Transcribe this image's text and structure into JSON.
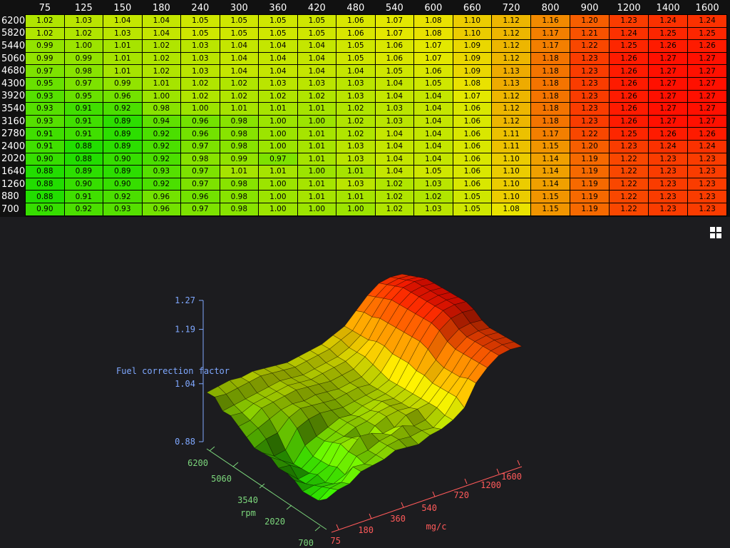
{
  "table": {
    "x_headers": [
      "75",
      "125",
      "150",
      "180",
      "240",
      "300",
      "360",
      "420",
      "480",
      "540",
      "600",
      "660",
      "720",
      "800",
      "900",
      "1200",
      "1400",
      "1600"
    ],
    "rows": [
      {
        "rpm": "6200",
        "values": [
          "1.02",
          "1.03",
          "1.04",
          "1.04",
          "1.05",
          "1.05",
          "1.05",
          "1.05",
          "1.06",
          "1.07",
          "1.08",
          "1.10",
          "1.12",
          "1.16",
          "1.20",
          "1.23",
          "1.24",
          "1.24"
        ]
      },
      {
        "rpm": "5820",
        "values": [
          "1.02",
          "1.02",
          "1.03",
          "1.04",
          "1.05",
          "1.05",
          "1.05",
          "1.05",
          "1.06",
          "1.07",
          "1.08",
          "1.10",
          "1.12",
          "1.17",
          "1.21",
          "1.24",
          "1.25",
          "1.25"
        ]
      },
      {
        "rpm": "5440",
        "values": [
          "0.99",
          "1.00",
          "1.01",
          "1.02",
          "1.03",
          "1.04",
          "1.04",
          "1.04",
          "1.05",
          "1.06",
          "1.07",
          "1.09",
          "1.12",
          "1.17",
          "1.22",
          "1.25",
          "1.26",
          "1.26"
        ]
      },
      {
        "rpm": "5060",
        "values": [
          "0.99",
          "0.99",
          "1.01",
          "1.02",
          "1.03",
          "1.04",
          "1.04",
          "1.04",
          "1.05",
          "1.06",
          "1.07",
          "1.09",
          "1.12",
          "1.18",
          "1.23",
          "1.26",
          "1.27",
          "1.27"
        ]
      },
      {
        "rpm": "4680",
        "values": [
          "0.97",
          "0.98",
          "1.01",
          "1.02",
          "1.03",
          "1.04",
          "1.04",
          "1.04",
          "1.04",
          "1.05",
          "1.06",
          "1.09",
          "1.13",
          "1.18",
          "1.23",
          "1.26",
          "1.27",
          "1.27"
        ]
      },
      {
        "rpm": "4300",
        "values": [
          "0.95",
          "0.97",
          "0.99",
          "1.01",
          "1.02",
          "1.02",
          "1.03",
          "1.03",
          "1.03",
          "1.04",
          "1.05",
          "1.08",
          "1.13",
          "1.18",
          "1.23",
          "1.26",
          "1.27",
          "1.27"
        ]
      },
      {
        "rpm": "3920",
        "values": [
          "0.93",
          "0.95",
          "0.96",
          "1.00",
          "1.02",
          "1.02",
          "1.02",
          "1.02",
          "1.03",
          "1.04",
          "1.04",
          "1.07",
          "1.12",
          "1.18",
          "1.23",
          "1.26",
          "1.27",
          "1.27"
        ]
      },
      {
        "rpm": "3540",
        "values": [
          "0.93",
          "0.91",
          "0.92",
          "0.98",
          "1.00",
          "1.01",
          "1.01",
          "1.01",
          "1.02",
          "1.03",
          "1.04",
          "1.06",
          "1.12",
          "1.18",
          "1.23",
          "1.26",
          "1.27",
          "1.27"
        ]
      },
      {
        "rpm": "3160",
        "values": [
          "0.93",
          "0.91",
          "0.89",
          "0.94",
          "0.96",
          "0.98",
          "1.00",
          "1.00",
          "1.02",
          "1.03",
          "1.04",
          "1.06",
          "1.12",
          "1.18",
          "1.23",
          "1.26",
          "1.27",
          "1.27"
        ]
      },
      {
        "rpm": "2780",
        "values": [
          "0.91",
          "0.91",
          "0.89",
          "0.92",
          "0.96",
          "0.98",
          "1.00",
          "1.01",
          "1.02",
          "1.04",
          "1.04",
          "1.06",
          "1.11",
          "1.17",
          "1.22",
          "1.25",
          "1.26",
          "1.26"
        ]
      },
      {
        "rpm": "2400",
        "values": [
          "0.91",
          "0.88",
          "0.89",
          "0.92",
          "0.97",
          "0.98",
          "1.00",
          "1.01",
          "1.03",
          "1.04",
          "1.04",
          "1.06",
          "1.11",
          "1.15",
          "1.20",
          "1.23",
          "1.24",
          "1.24"
        ]
      },
      {
        "rpm": "2020",
        "values": [
          "0.90",
          "0.88",
          "0.90",
          "0.92",
          "0.98",
          "0.99",
          "0.97",
          "1.01",
          "1.03",
          "1.04",
          "1.04",
          "1.06",
          "1.10",
          "1.14",
          "1.19",
          "1.22",
          "1.23",
          "1.23"
        ]
      },
      {
        "rpm": "1640",
        "values": [
          "0.88",
          "0.89",
          "0.89",
          "0.93",
          "0.97",
          "1.01",
          "1.01",
          "1.00",
          "1.01",
          "1.04",
          "1.05",
          "1.06",
          "1.10",
          "1.14",
          "1.19",
          "1.22",
          "1.23",
          "1.23"
        ]
      },
      {
        "rpm": "1260",
        "values": [
          "0.88",
          "0.90",
          "0.90",
          "0.92",
          "0.97",
          "0.98",
          "1.00",
          "1.01",
          "1.03",
          "1.02",
          "1.03",
          "1.06",
          "1.10",
          "1.14",
          "1.19",
          "1.22",
          "1.23",
          "1.23"
        ]
      },
      {
        "rpm": "880",
        "values": [
          "0.88",
          "0.91",
          "0.92",
          "0.96",
          "0.96",
          "0.98",
          "1.00",
          "1.01",
          "1.01",
          "1.02",
          "1.02",
          "1.05",
          "1.10",
          "1.15",
          "1.19",
          "1.22",
          "1.23",
          "1.23"
        ]
      },
      {
        "rpm": "700",
        "values": [
          "0.90",
          "0.92",
          "0.93",
          "0.96",
          "0.97",
          "0.98",
          "1.00",
          "1.00",
          "1.00",
          "1.02",
          "1.03",
          "1.05",
          "1.08",
          "1.15",
          "1.19",
          "1.22",
          "1.23",
          "1.23"
        ]
      }
    ]
  },
  "chart_data": {
    "type": "surface3d",
    "zlabel": "Fuel correction factor",
    "ylabel": "rpm",
    "xlabel": "mg/c",
    "z_ticks": [
      "1.27",
      "1.19",
      "1.04",
      "0.88"
    ],
    "rpm_ticks": [
      "6200",
      "5060",
      "3540",
      "2020",
      "700"
    ],
    "mgc_ticks": [
      "75",
      "180",
      "360",
      "540",
      "720",
      "1200",
      "1600"
    ],
    "zlim": [
      0.88,
      1.27
    ],
    "colors": {
      "low": "#22dd00",
      "mid": "#e8e800",
      "high": "#ff1000"
    }
  },
  "controls": {
    "grid_toggle": "grid-icon"
  },
  "colors": {
    "z_axis": "#7fa8ff",
    "rpm_axis": "#7cd67c",
    "mgc_axis": "#ff5a5a",
    "background": "#1c1c1f"
  }
}
